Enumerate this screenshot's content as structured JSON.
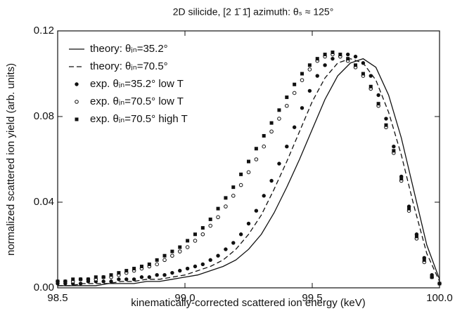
{
  "chart_data": {
    "type": "line",
    "title": "2D silicide, [2 1̄ 1̄] azimuth: θₛ ≈ 125°",
    "xlabel": "kinematically-corrected scattered ion energy (keV)",
    "ylabel": "normalized scattered ion yield (arb. units)",
    "xlim": [
      98.5,
      100.0
    ],
    "ylim": [
      0,
      0.12
    ],
    "xticks": [
      98.5,
      {
        "value": 99,
        "label": "99.0"
      },
      99.5,
      {
        "value": 100,
        "label": "100.0"
      }
    ],
    "yticks": [
      {
        "value": 0,
        "label": "0.00"
      },
      0.04,
      0.08,
      0.12
    ],
    "legend": "upper left",
    "series": [
      {
        "name": "theory: θᵢₙ=35.2°",
        "color": "#111111",
        "line_style": "solid",
        "x": [
          98.5,
          98.55,
          98.6,
          98.65,
          98.7,
          98.75,
          98.8,
          98.85,
          98.9,
          98.95,
          99.0,
          99.05,
          99.1,
          99.15,
          99.2,
          99.25,
          99.3,
          99.35,
          99.4,
          99.45,
          99.5,
          99.55,
          99.6,
          99.65,
          99.7,
          99.75,
          99.8,
          99.85,
          99.9,
          99.95,
          100.0
        ],
        "values": [
          0.001,
          0.001,
          0.001,
          0.001,
          0.002,
          0.002,
          0.002,
          0.003,
          0.003,
          0.004,
          0.005,
          0.006,
          0.008,
          0.01,
          0.013,
          0.018,
          0.025,
          0.035,
          0.047,
          0.06,
          0.074,
          0.088,
          0.099,
          0.105,
          0.107,
          0.103,
          0.09,
          0.07,
          0.045,
          0.02,
          0.004
        ]
      },
      {
        "name": "theory: θᵢₙ=70.5°",
        "color": "#111111",
        "line_style": "dashed",
        "x": [
          98.5,
          98.55,
          98.6,
          98.65,
          98.7,
          98.75,
          98.8,
          98.85,
          98.9,
          98.95,
          99.0,
          99.05,
          99.1,
          99.15,
          99.2,
          99.25,
          99.3,
          99.35,
          99.4,
          99.45,
          99.5,
          99.55,
          99.6,
          99.65,
          99.7,
          99.75,
          99.8,
          99.85,
          99.9,
          99.95,
          100.0
        ],
        "values": [
          0.001,
          0.001,
          0.002,
          0.002,
          0.002,
          0.003,
          0.003,
          0.004,
          0.004,
          0.005,
          0.006,
          0.008,
          0.01,
          0.013,
          0.018,
          0.025,
          0.034,
          0.046,
          0.059,
          0.073,
          0.087,
          0.098,
          0.105,
          0.107,
          0.105,
          0.097,
          0.082,
          0.062,
          0.038,
          0.016,
          0.003
        ]
      },
      {
        "name": "exp. θᵢₙ=35.2° low T",
        "color": "#111111",
        "marker": "filled-circle",
        "x": [
          98.5,
          98.53,
          98.56,
          98.59,
          98.62,
          98.65,
          98.68,
          98.71,
          98.74,
          98.77,
          98.8,
          98.83,
          98.86,
          98.89,
          98.92,
          98.95,
          98.98,
          99.01,
          99.04,
          99.07,
          99.1,
          99.13,
          99.16,
          99.19,
          99.22,
          99.25,
          99.28,
          99.31,
          99.34,
          99.37,
          99.4,
          99.43,
          99.46,
          99.49,
          99.52,
          99.55,
          99.58,
          99.61,
          99.64,
          99.67,
          99.7,
          99.73,
          99.76,
          99.79,
          99.82,
          99.85,
          99.88,
          99.91,
          99.94,
          99.97,
          100.0
        ],
        "values": [
          0.002,
          0.002,
          0.002,
          0.002,
          0.003,
          0.003,
          0.003,
          0.003,
          0.004,
          0.004,
          0.004,
          0.005,
          0.005,
          0.006,
          0.006,
          0.007,
          0.008,
          0.009,
          0.01,
          0.011,
          0.013,
          0.015,
          0.018,
          0.021,
          0.025,
          0.03,
          0.036,
          0.043,
          0.05,
          0.058,
          0.066,
          0.075,
          0.084,
          0.092,
          0.099,
          0.104,
          0.107,
          0.108,
          0.109,
          0.108,
          0.105,
          0.099,
          0.09,
          0.079,
          0.066,
          0.052,
          0.038,
          0.025,
          0.014,
          0.006,
          0.002
        ]
      },
      {
        "name": "exp. θᵢₙ=70.5° low T",
        "color": "#111111",
        "marker": "open-circle",
        "x": [
          98.5,
          98.53,
          98.56,
          98.59,
          98.62,
          98.65,
          98.68,
          98.71,
          98.74,
          98.77,
          98.8,
          98.83,
          98.86,
          98.89,
          98.92,
          98.95,
          98.98,
          99.01,
          99.04,
          99.07,
          99.1,
          99.13,
          99.16,
          99.19,
          99.22,
          99.25,
          99.28,
          99.31,
          99.34,
          99.37,
          99.4,
          99.43,
          99.46,
          99.49,
          99.52,
          99.55,
          99.58,
          99.61,
          99.64,
          99.67,
          99.7,
          99.73,
          99.76,
          99.79,
          99.82,
          99.85,
          99.88,
          99.91,
          99.94,
          99.97,
          100.0
        ],
        "values": [
          0.003,
          0.003,
          0.003,
          0.004,
          0.004,
          0.004,
          0.005,
          0.005,
          0.006,
          0.007,
          0.008,
          0.009,
          0.01,
          0.011,
          0.013,
          0.015,
          0.017,
          0.019,
          0.022,
          0.025,
          0.029,
          0.033,
          0.038,
          0.043,
          0.048,
          0.054,
          0.06,
          0.066,
          0.073,
          0.079,
          0.085,
          0.091,
          0.097,
          0.102,
          0.106,
          0.108,
          0.109,
          0.108,
          0.106,
          0.103,
          0.099,
          0.093,
          0.085,
          0.075,
          0.063,
          0.05,
          0.036,
          0.023,
          0.012,
          0.005,
          0.002
        ]
      },
      {
        "name": "exp. θᵢₙ=70.5° high T",
        "color": "#111111",
        "marker": "filled-square",
        "x": [
          98.5,
          98.53,
          98.56,
          98.59,
          98.62,
          98.65,
          98.68,
          98.71,
          98.74,
          98.77,
          98.8,
          98.83,
          98.86,
          98.89,
          98.92,
          98.95,
          98.98,
          99.01,
          99.04,
          99.07,
          99.1,
          99.13,
          99.16,
          99.19,
          99.22,
          99.25,
          99.28,
          99.31,
          99.34,
          99.37,
          99.4,
          99.43,
          99.46,
          99.49,
          99.52,
          99.55,
          99.58,
          99.61,
          99.64,
          99.67,
          99.7,
          99.73,
          99.76,
          99.79,
          99.82,
          99.85,
          99.88,
          99.91,
          99.94,
          99.97,
          100.0
        ],
        "values": [
          0.003,
          0.003,
          0.004,
          0.004,
          0.004,
          0.005,
          0.005,
          0.006,
          0.007,
          0.008,
          0.009,
          0.01,
          0.011,
          0.013,
          0.015,
          0.017,
          0.019,
          0.022,
          0.025,
          0.028,
          0.032,
          0.037,
          0.042,
          0.047,
          0.053,
          0.059,
          0.065,
          0.071,
          0.077,
          0.083,
          0.089,
          0.095,
          0.1,
          0.104,
          0.107,
          0.109,
          0.11,
          0.109,
          0.107,
          0.104,
          0.1,
          0.094,
          0.086,
          0.076,
          0.064,
          0.051,
          0.037,
          0.024,
          0.013,
          0.005,
          0.002
        ]
      }
    ]
  }
}
